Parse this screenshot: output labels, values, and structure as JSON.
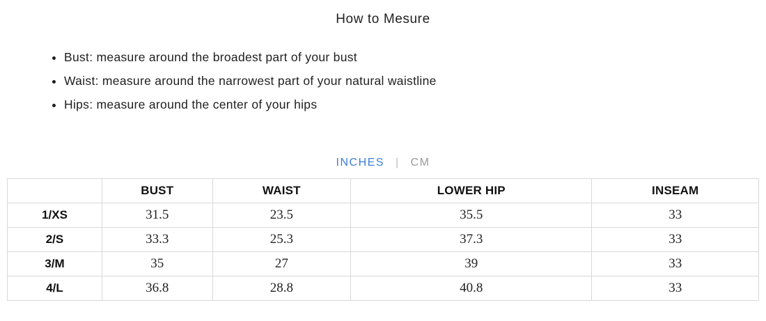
{
  "page": {
    "title": "How to Mesure"
  },
  "instructions": {
    "items": [
      "Bust: measure around the broadest part of your bust",
      "Waist: measure around the narrowest part of your natural waistline",
      "Hips: measure around the center of your hips"
    ]
  },
  "unit_toggle": {
    "inches_label": "INCHES",
    "separator": "|",
    "cm_label": "CM",
    "active_unit": "INCHES",
    "active_color": "#3d7ed9",
    "inactive_color": "#9a9a9a"
  },
  "size_table": {
    "columns": [
      "",
      "BUST",
      "WAIST",
      "LOWER HIP",
      "INSEAM"
    ],
    "rows": [
      {
        "size": "1/XS",
        "bust": "31.5",
        "waist": "23.5",
        "lower_hip": "35.5",
        "inseam": "33"
      },
      {
        "size": "2/S",
        "bust": "33.3",
        "waist": "25.3",
        "lower_hip": "37.3",
        "inseam": "33"
      },
      {
        "size": "3/M",
        "bust": "35",
        "waist": "27",
        "lower_hip": "39",
        "inseam": "33"
      },
      {
        "size": "4/L",
        "bust": "36.8",
        "waist": "28.8",
        "lower_hip": "40.8",
        "inseam": "33"
      }
    ],
    "border_color": "#d8d8d8"
  }
}
